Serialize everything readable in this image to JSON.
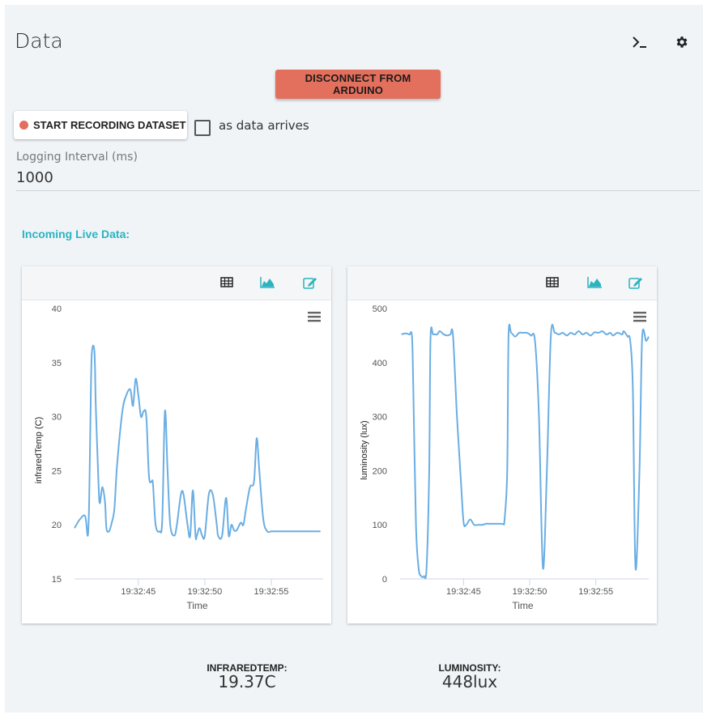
{
  "header": {
    "title": "Data",
    "terminal_icon": "terminal-icon",
    "settings_icon": "gear-icon"
  },
  "controls": {
    "disconnect_label": "DISCONNECT FROM ARDUINO",
    "record_label": "START RECORDING DATASET",
    "as_data_arrives_label": "as data arrives",
    "as_data_arrives_checked": false,
    "logging_label": "Logging Interval (ms)",
    "logging_value": "1000"
  },
  "live": {
    "title": "Incoming Live Data:"
  },
  "colors": {
    "accent": "#2bb3c0",
    "disconnect": "#e3705d",
    "line": "#6aaee3"
  },
  "chart_data": [
    {
      "type": "line",
      "ylabel": "infraredTemp (C)",
      "xlabel": "Time",
      "ylim": [
        15,
        40
      ],
      "yticks": [
        "15",
        "20",
        "25",
        "30",
        "35",
        "40"
      ],
      "xtick_labels": [
        "19:32:45",
        "19:32:50",
        "19:32:55"
      ],
      "xtick_positions": [
        45,
        50,
        55
      ],
      "xlim": [
        40.2,
        58.9
      ],
      "series": [
        {
          "x": [
            40.2,
            40.6,
            41.0,
            41.2,
            41.3,
            41.4,
            41.5,
            41.7,
            41.8,
            42.0,
            42.1,
            42.3,
            42.5,
            42.6,
            42.8,
            43.0,
            43.2,
            43.4,
            43.8,
            44.1,
            44.4,
            44.6,
            44.8,
            45.0,
            45.2,
            45.4,
            45.6,
            45.8,
            46.0,
            46.1,
            46.3,
            46.6,
            46.8,
            47.0,
            47.2,
            47.4,
            47.7,
            47.9,
            48.2,
            48.4,
            48.7,
            48.9,
            49.1,
            49.3,
            49.4,
            49.6,
            49.8,
            50.0,
            50.3,
            50.6,
            50.9,
            51.0,
            51.3,
            51.6,
            51.8,
            52.0,
            52.2,
            52.4,
            52.7,
            52.9,
            53.1,
            53.4,
            53.7,
            53.9,
            54.1,
            54.4,
            54.7,
            55.0,
            55.3,
            55.5,
            55.8,
            56.1,
            56.3,
            56.6,
            56.9,
            57.2,
            57.4,
            57.7,
            57.9,
            58.2,
            58.5,
            58.7
          ],
          "values": [
            19.7,
            20.5,
            20.8,
            19.0,
            22.0,
            30.0,
            35.8,
            36.0,
            31.0,
            24.0,
            22.0,
            23.5,
            22.0,
            19.7,
            19.4,
            20.2,
            21.5,
            25.5,
            30.5,
            32.0,
            32.5,
            31.0,
            33.5,
            32.0,
            30.0,
            30.5,
            30.0,
            24.5,
            24.0,
            23.8,
            20.0,
            19.4,
            20.5,
            30.5,
            25.0,
            20.0,
            19.0,
            20.0,
            22.8,
            22.8,
            20.0,
            19.0,
            23.2,
            19.0,
            19.0,
            19.7,
            19.0,
            19.0,
            22.8,
            22.8,
            20.0,
            19.0,
            19.0,
            22.5,
            19.0,
            20.0,
            19.5,
            19.5,
            20.2,
            20.0,
            21.5,
            23.5,
            24.0,
            28.0,
            25.0,
            20.5,
            19.4,
            19.4,
            19.4,
            19.4,
            19.4,
            19.4,
            19.4,
            19.4,
            19.4,
            19.4,
            19.4,
            19.4,
            19.4,
            19.4,
            19.4,
            19.4
          ]
        }
      ]
    },
    {
      "type": "line",
      "ylabel": "luminosity (lux)",
      "xlabel": "Time",
      "ylim": [
        0,
        500
      ],
      "yticks": [
        "0",
        "100",
        "200",
        "300",
        "400",
        "500"
      ],
      "xtick_labels": [
        "19:32:45",
        "19:32:50",
        "19:32:55"
      ],
      "xtick_positions": [
        45,
        50,
        55
      ],
      "xlim": [
        40.2,
        59.0
      ],
      "series": [
        {
          "x": [
            40.3,
            40.6,
            40.9,
            41.1,
            41.2,
            41.4,
            41.6,
            41.8,
            42.0,
            42.2,
            42.4,
            42.5,
            42.7,
            43.0,
            43.2,
            43.5,
            43.8,
            44.0,
            44.2,
            44.5,
            44.8,
            45.0,
            45.2,
            45.5,
            45.8,
            46.1,
            46.4,
            46.7,
            47.0,
            47.2,
            47.4,
            47.6,
            47.8,
            48.0,
            48.1,
            48.3,
            48.4,
            48.6,
            48.9,
            49.2,
            49.5,
            49.8,
            50.1,
            50.4,
            50.7,
            51.0,
            51.3,
            51.6,
            51.9,
            52.2,
            52.5,
            52.8,
            53.1,
            53.4,
            53.7,
            54.0,
            54.3,
            54.6,
            54.9,
            55.2,
            55.5,
            55.8,
            56.1,
            56.3,
            56.6,
            56.8,
            57.0,
            57.1,
            57.3,
            57.4,
            57.6,
            57.8,
            58.0,
            58.3,
            58.5,
            58.8,
            59.0
          ],
          "values": [
            452,
            454,
            452,
            448,
            350,
            100,
            20,
            5,
            5,
            20,
            200,
            445,
            452,
            452,
            458,
            452,
            450,
            452,
            450,
            300,
            180,
            105,
            100,
            110,
            100,
            100,
            100,
            102,
            102,
            102,
            102,
            102,
            102,
            102,
            110,
            200,
            450,
            455,
            448,
            455,
            455,
            455,
            450,
            440,
            300,
            20,
            200,
            450,
            455,
            452,
            455,
            450,
            455,
            452,
            458,
            452,
            455,
            450,
            456,
            455,
            458,
            452,
            455,
            450,
            455,
            454,
            452,
            458,
            452,
            448,
            440,
            350,
            20,
            200,
            445,
            440,
            448
          ]
        }
      ]
    }
  ],
  "readouts": [
    {
      "label": "INFRAREDTEMP:",
      "value": "19.37C"
    },
    {
      "label": "LUMINOSITY:",
      "value": "448lux"
    }
  ]
}
